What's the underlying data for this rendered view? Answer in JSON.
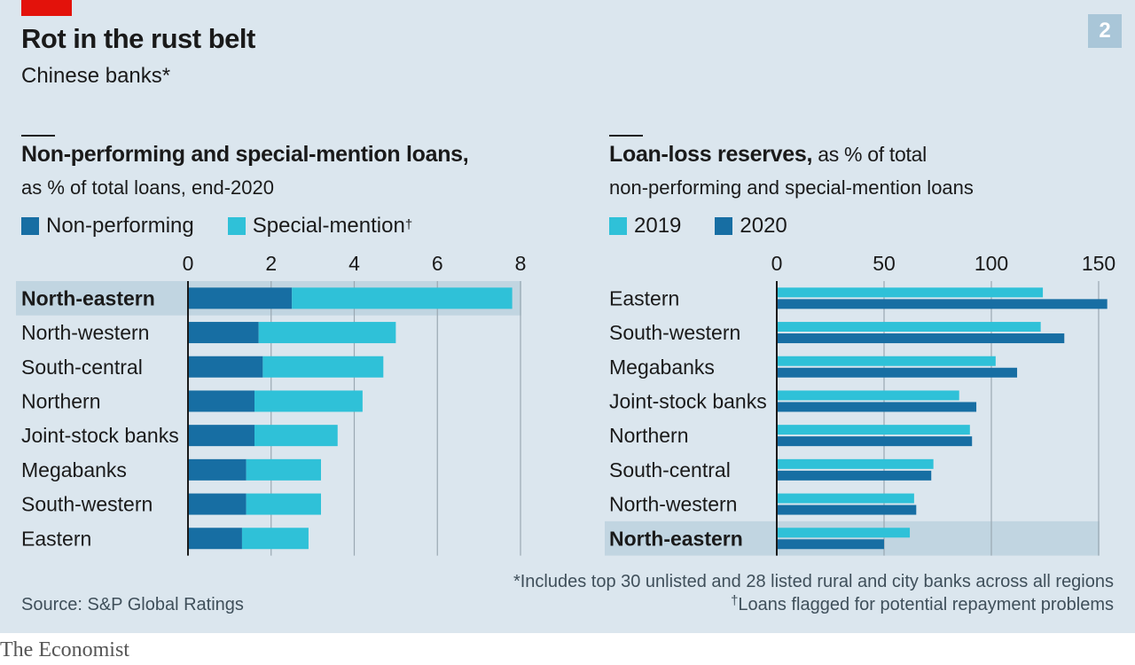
{
  "header": {
    "title": "Rot in the rust belt",
    "subtitle": "Chinese banks*",
    "chart_number": "2"
  },
  "left_panel": {
    "title": "Non-performing and special-mention loans,",
    "subtitle": "as % of total loans, end-2020",
    "legend": [
      {
        "label": "Non-performing",
        "sup": "",
        "color": "#176ea3"
      },
      {
        "label": "Special-mention",
        "sup": "†",
        "color": "#2fc1d8"
      }
    ]
  },
  "right_panel": {
    "title": "Loan-loss reserves,",
    "title_rest": " as % of total",
    "subtitle": "non-performing and special-mention loans",
    "legend": [
      {
        "label": "2019",
        "color": "#2fc1d8"
      },
      {
        "label": "2020",
        "color": "#176ea3"
      }
    ]
  },
  "footnotes": {
    "source": "Source: S&P Global Ratings",
    "note1": "*Includes top 30 unlisted and 28 listed rural and city banks across all regions",
    "note2_mark": "†",
    "note2": "Loans flagged for potential repayment problems"
  },
  "brand": "The Economist",
  "colors": {
    "background": "#dbe6ee",
    "highlight": "#c1d5e1",
    "dark_blue": "#176ea3",
    "light_blue": "#2fc1d8",
    "grid": "#9aa8b2",
    "red_tag": "#e3120b"
  },
  "chart_data": [
    {
      "type": "bar",
      "orientation": "horizontal",
      "stacked": true,
      "title": "Non-performing and special-mention loans,",
      "subtitle": "as % of total loans, end-2020",
      "categories": [
        "North-eastern",
        "North-western",
        "South-central",
        "Northern",
        "Joint-stock banks",
        "Megabanks",
        "South-western",
        "Eastern"
      ],
      "highlight": "North-eastern",
      "series": [
        {
          "name": "Non-performing",
          "values": [
            2.5,
            1.7,
            1.8,
            1.6,
            1.6,
            1.4,
            1.4,
            1.3
          ]
        },
        {
          "name": "Special-mention",
          "values": [
            5.3,
            3.3,
            2.9,
            2.6,
            2.0,
            1.8,
            1.8,
            1.6
          ]
        }
      ],
      "xlim": [
        0,
        8
      ],
      "xticks": [
        0,
        2,
        4,
        6,
        8
      ],
      "grid": true,
      "legend_position": "top-left"
    },
    {
      "type": "bar",
      "orientation": "horizontal",
      "stacked": false,
      "title": "Loan-loss reserves, as % of total",
      "subtitle": "non-performing and special-mention loans",
      "categories": [
        "Eastern",
        "South-western",
        "Megabanks",
        "Joint-stock banks",
        "Northern",
        "South-central",
        "North-western",
        "North-eastern"
      ],
      "highlight": "North-eastern",
      "series": [
        {
          "name": "2019",
          "values": [
            124,
            123,
            102,
            85,
            90,
            73,
            64,
            62
          ]
        },
        {
          "name": "2020",
          "values": [
            154,
            134,
            112,
            93,
            91,
            72,
            65,
            50
          ]
        }
      ],
      "xlim": [
        0,
        150
      ],
      "xticks": [
        0,
        50,
        100,
        150
      ],
      "grid": true,
      "legend_position": "top-left"
    }
  ]
}
